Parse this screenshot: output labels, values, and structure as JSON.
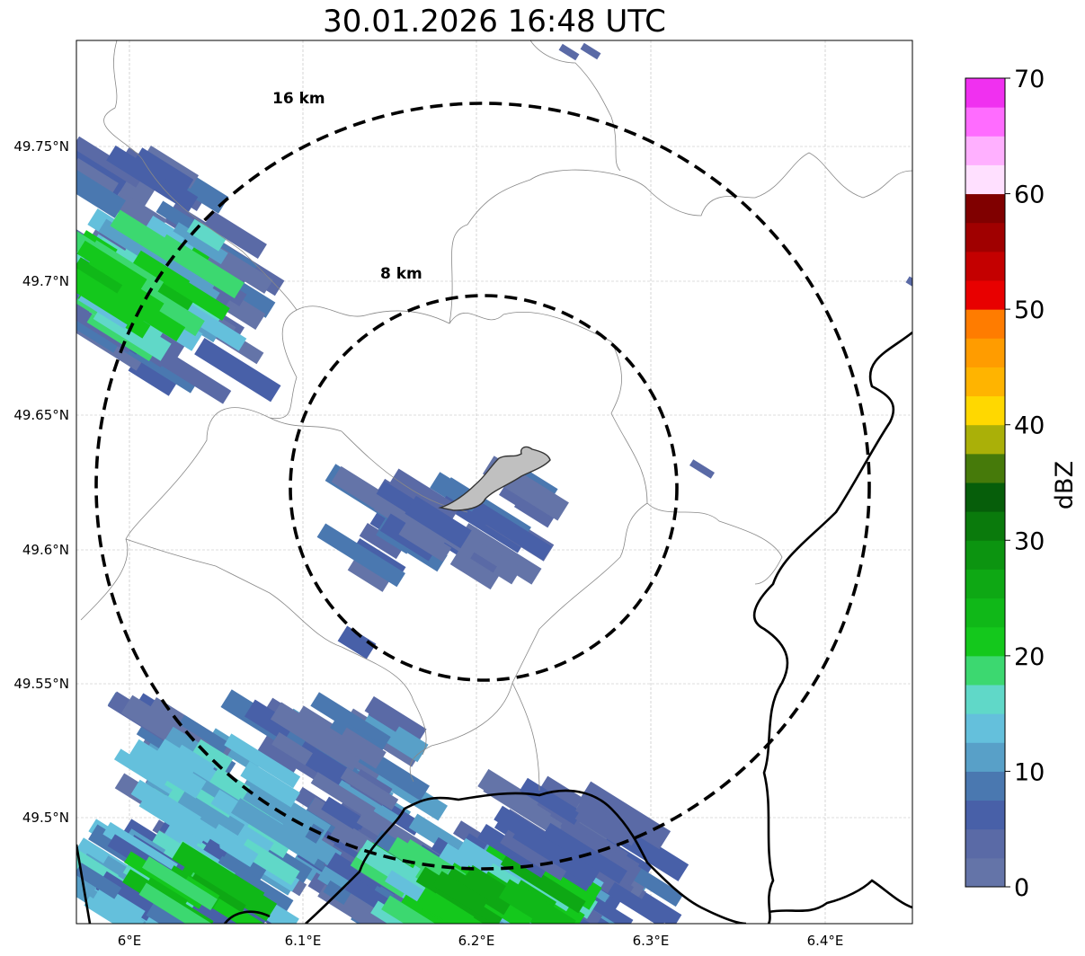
{
  "title": "30.01.2026 16:48 UTC",
  "x_ticks": [
    "6°E",
    "6.1°E",
    "6.2°E",
    "6.3°E",
    "6.4°E"
  ],
  "y_ticks": [
    "49.75°N",
    "49.7°N",
    "49.65°N",
    "49.6°N",
    "49.55°N",
    "49.5°N"
  ],
  "ring_labels": {
    "outer": "16 km",
    "inner": "8 km"
  },
  "colorbar": {
    "label": "dBZ",
    "ticks": [
      "0",
      "10",
      "20",
      "30",
      "40",
      "50",
      "60",
      "70"
    ],
    "range": [
      0,
      70
    ],
    "step": 2.5,
    "colors": [
      "#6474a8",
      "#5a6aa6",
      "#4860a8",
      "#4a78b0",
      "#58a0c8",
      "#64c0dc",
      "#60d8c8",
      "#3cd870",
      "#14c81c",
      "#10b818",
      "#0ea814",
      "#0c9410",
      "#0a7a0c",
      "#065e0a",
      "#467a0a",
      "#aab008",
      "#ffd800",
      "#ffb400",
      "#ff9c00",
      "#ff7c00",
      "#e80000",
      "#c40000",
      "#a00000",
      "#800000",
      "#ffe0ff",
      "#ffb0ff",
      "#ff6cff",
      "#f030f0"
    ]
  }
}
